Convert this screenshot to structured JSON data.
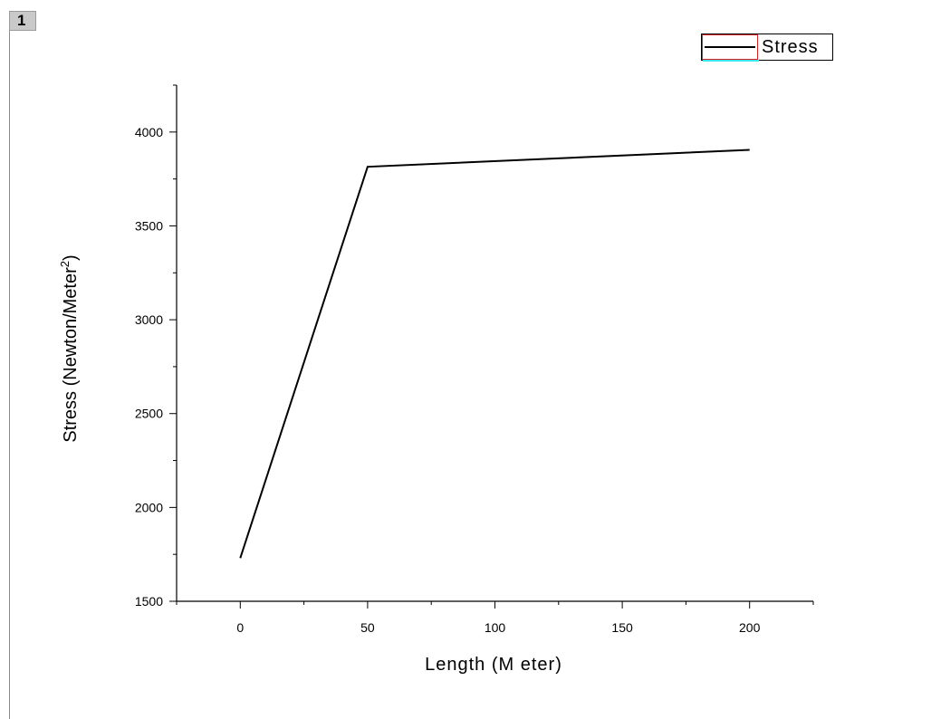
{
  "layer": {
    "number": "1"
  },
  "legend": {
    "label": "Stress"
  },
  "colors": {
    "line": "#000000",
    "legend_border": "#e02020",
    "legend_accent": "#38e6ee",
    "badge": "#c9c9c9"
  },
  "chart_data": {
    "type": "line",
    "title": "",
    "xlabel": "Length (M eter)",
    "ylabel_main": "Stress (Newton/Meter",
    "ylabel_sup": "2",
    "ylabel_close": ")",
    "xlim": [
      -25,
      225
    ],
    "ylim": [
      1500,
      4250
    ],
    "xticks": [
      0,
      50,
      100,
      150,
      200
    ],
    "yticks": [
      1500,
      2000,
      2500,
      3000,
      3500,
      4000
    ],
    "xticklabels": [
      "0",
      "50",
      "100",
      "150",
      "200"
    ],
    "yticklabels": [
      "1500",
      "2000",
      "2500",
      "3000",
      "3500",
      "4000"
    ],
    "grid": false,
    "legend_position": "top-right",
    "series": [
      {
        "name": "Stress",
        "x": [
          0,
          50,
          200
        ],
        "y": [
          1730,
          3815,
          3905
        ]
      }
    ]
  }
}
